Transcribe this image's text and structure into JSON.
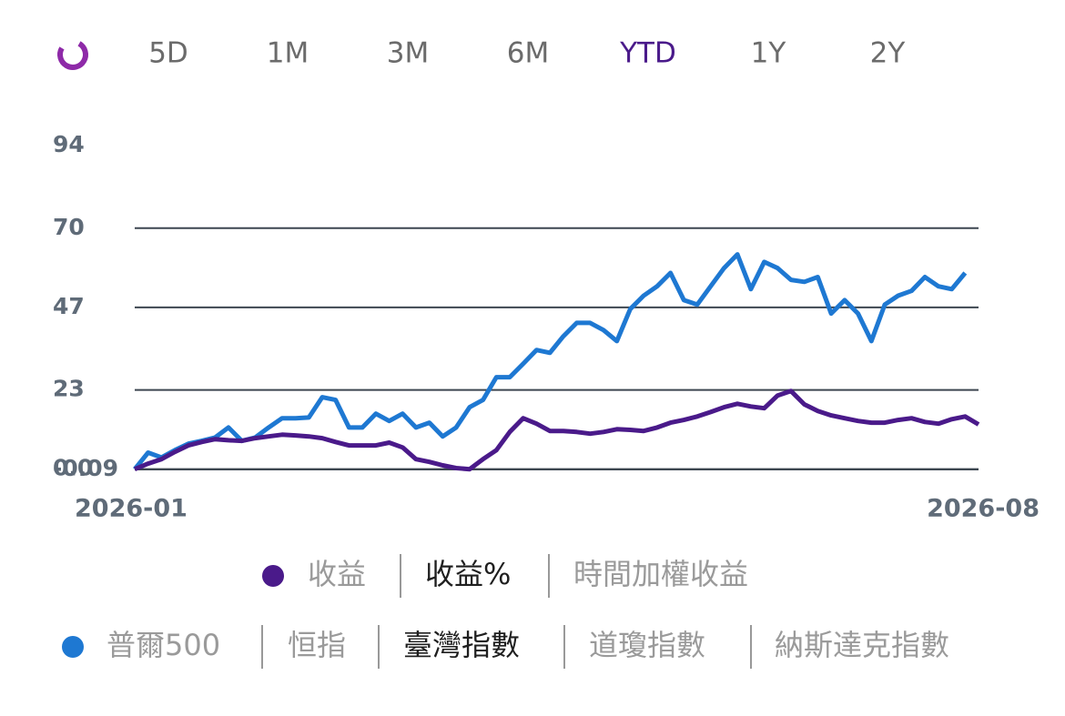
{
  "tabs": [
    "5D",
    "1M",
    "3M",
    "6M",
    "YTD",
    "1Y",
    "2Y"
  ],
  "active_tab": 4,
  "active_color": "#4a1a8a",
  "metrics": {
    "color": "#4a1a8a",
    "options": [
      "收益",
      "收益%",
      "時間加權收益"
    ],
    "selected": 1
  },
  "benchmarks": {
    "color": "#1e78d2",
    "options": [
      "普爾500",
      "恒指",
      "臺灣指數",
      "道瓊指數",
      "納斯達克指數"
    ],
    "selected": 2
  },
  "chart_data": {
    "type": "line",
    "categories": [
      "2026-01",
      null,
      null,
      null,
      null,
      null,
      null,
      null,
      null,
      null,
      null,
      null,
      null,
      null,
      null,
      null,
      null,
      null,
      null,
      null,
      null,
      null,
      null,
      null,
      null,
      null,
      null,
      null,
      null,
      null,
      null,
      null,
      null,
      null,
      null,
      null,
      null,
      null,
      null,
      null,
      null,
      null,
      null,
      null,
      null,
      null,
      null,
      null,
      null,
      null,
      null,
      null,
      null,
      null,
      null,
      null,
      null,
      null,
      null,
      null,
      null,
      null,
      null,
      "2026-08"
    ],
    "series": [
      {
        "color": "#1e78d2",
        "values": [
          0,
          4.8,
          3.4,
          5.5,
          7.4,
          8.2,
          9.2,
          12.1,
          8.2,
          9.2,
          12.1,
          14.8,
          14.8,
          15.0,
          20.9,
          20.1,
          12.1,
          12.1,
          16.1,
          14.0,
          16.1,
          12.1,
          13.5,
          9.5,
          12.1,
          18.0,
          20.1,
          26.7,
          26.7,
          30.6,
          34.6,
          33.8,
          38.6,
          42.5,
          42.5,
          40.4,
          37.2,
          46.5,
          50.4,
          53.1,
          57.0,
          49.1,
          47.8,
          53.1,
          58.4,
          62.4,
          52.3,
          60.2,
          58.4,
          55.0,
          54.4,
          55.8,
          45.2,
          49.1,
          45.2,
          37.2,
          47.8,
          50.4,
          51.8,
          55.8,
          53.1,
          52.3,
          57.0,
          null
        ]
      },
      {
        "color": "#4a1a8a",
        "values": [
          0,
          1.6,
          2.9,
          5.0,
          6.9,
          7.9,
          8.7,
          8.4,
          8.2,
          9.0,
          9.5,
          10.0,
          9.8,
          9.5,
          9.0,
          7.9,
          6.9,
          6.9,
          6.9,
          7.7,
          6.3,
          2.9,
          2.1,
          1.1,
          0.3,
          0,
          2.9,
          5.5,
          10.8,
          14.8,
          13.2,
          11.1,
          11.1,
          10.8,
          10.3,
          10.8,
          11.6,
          11.4,
          11.1,
          12.1,
          13.5,
          14.3,
          15.3,
          16.6,
          18.0,
          19.0,
          18.2,
          17.7,
          21.4,
          22.7,
          18.8,
          16.9,
          15.6,
          14.8,
          14.0,
          13.5,
          13.5,
          14.3,
          14.8,
          13.7,
          13.2,
          14.5,
          15.3,
          13.0
        ]
      }
    ],
    "ylim": [
      -0.09,
      94
    ],
    "yticks": [
      {
        "value": -0.09,
        "label": "-0.09"
      },
      {
        "value": 0,
        "label": "0.0"
      },
      23,
      47,
      70,
      94
    ],
    "grid": true
  }
}
